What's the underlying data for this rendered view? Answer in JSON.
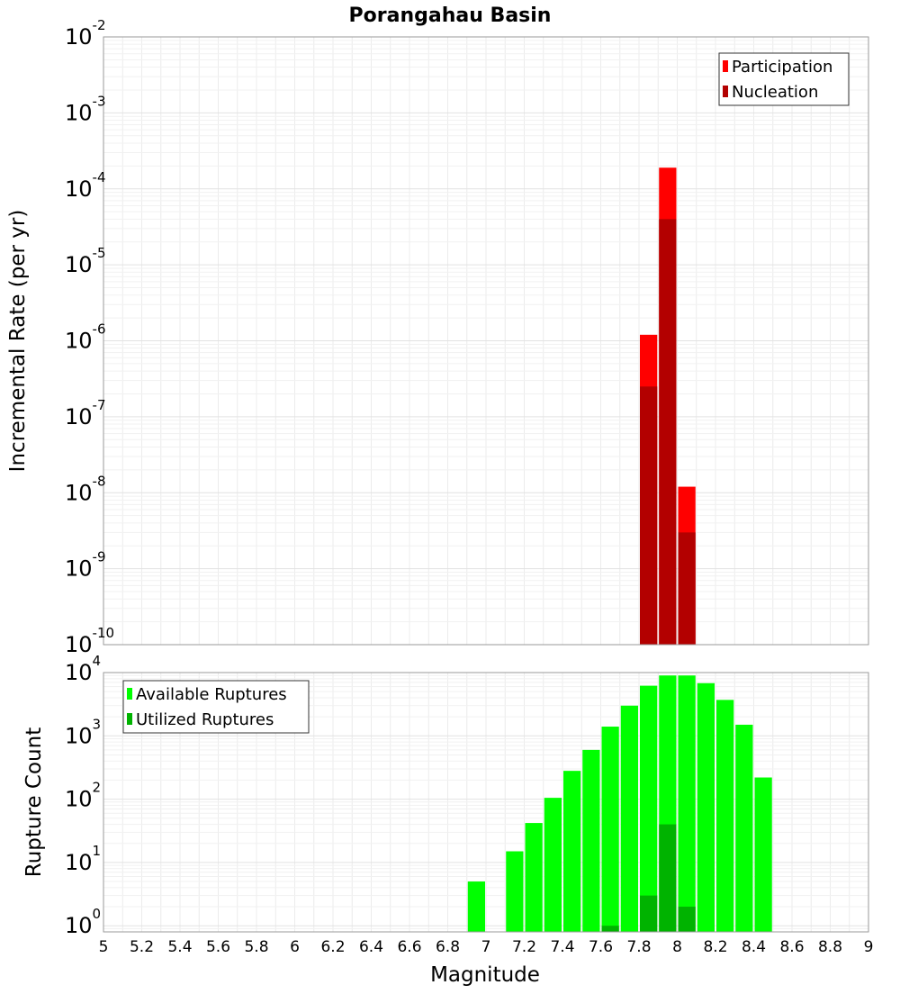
{
  "chart_data": [
    {
      "type": "bar",
      "title": "Porangahau Basin",
      "xlabel": "",
      "ylabel": "Incremental Rate (per yr)",
      "yscale": "log",
      "ylim": [
        1e-10,
        0.01
      ],
      "xlim": [
        5,
        9
      ],
      "bin_width": 0.1,
      "y_ticks": [
        {
          "base": "10",
          "exp": "-10",
          "value": 1e-10
        },
        {
          "base": "10",
          "exp": "-9",
          "value": 1e-09
        },
        {
          "base": "10",
          "exp": "-8",
          "value": 1e-08
        },
        {
          "base": "10",
          "exp": "-7",
          "value": 1e-07
        },
        {
          "base": "10",
          "exp": "-6",
          "value": 1e-06
        },
        {
          "base": "10",
          "exp": "-5",
          "value": 1e-05
        },
        {
          "base": "10",
          "exp": "-4",
          "value": 0.0001
        },
        {
          "base": "10",
          "exp": "-3",
          "value": 0.001
        },
        {
          "base": "10",
          "exp": "-2",
          "value": 0.01
        }
      ],
      "legend": {
        "position": "top-right",
        "entries": [
          "Participation",
          "Nucleation"
        ]
      },
      "series": [
        {
          "name": "Participation",
          "color": "#ff0000",
          "x": [
            7.85,
            7.95,
            8.05
          ],
          "values": [
            1.2e-06,
            0.00019,
            1.2e-08
          ]
        },
        {
          "name": "Nucleation",
          "color": "#b30000",
          "x": [
            7.85,
            7.95,
            8.05
          ],
          "values": [
            2.5e-07,
            4e-05,
            3e-09
          ]
        }
      ]
    },
    {
      "type": "bar",
      "title": "",
      "xlabel": "Magnitude",
      "ylabel": "Rupture Count",
      "yscale": "log",
      "ylim": [
        0.8,
        10000
      ],
      "xlim": [
        5,
        9
      ],
      "bin_width": 0.1,
      "y_ticks": [
        {
          "base": "10",
          "exp": "0",
          "value": 1
        },
        {
          "base": "10",
          "exp": "1",
          "value": 10
        },
        {
          "base": "10",
          "exp": "2",
          "value": 100
        },
        {
          "base": "10",
          "exp": "3",
          "value": 1000
        },
        {
          "base": "10",
          "exp": "4",
          "value": 10000
        }
      ],
      "x_ticks": [
        "5",
        "5.2",
        "5.4",
        "5.6",
        "5.8",
        "6",
        "6.2",
        "6.4",
        "6.6",
        "6.8",
        "7",
        "7.2",
        "7.4",
        "7.6",
        "7.8",
        "8",
        "8.2",
        "8.4",
        "8.6",
        "8.8",
        "9"
      ],
      "legend": {
        "position": "top-left",
        "entries": [
          "Available Ruptures",
          "Utilized Ruptures"
        ]
      },
      "series": [
        {
          "name": "Available Ruptures",
          "color": "#00ff00",
          "x": [
            6.95,
            7.15,
            7.25,
            7.35,
            7.45,
            7.55,
            7.65,
            7.75,
            7.85,
            7.95,
            8.05,
            8.15,
            8.25,
            8.35,
            8.45
          ],
          "values": [
            5,
            15,
            42,
            105,
            280,
            600,
            1400,
            3000,
            6200,
            9000,
            9000,
            6800,
            3700,
            1500,
            220
          ]
        },
        {
          "name": "Utilized Ruptures",
          "color": "#00b300",
          "x": [
            7.65,
            7.85,
            7.95,
            8.05
          ],
          "values": [
            1,
            3,
            40,
            2
          ]
        }
      ]
    }
  ]
}
